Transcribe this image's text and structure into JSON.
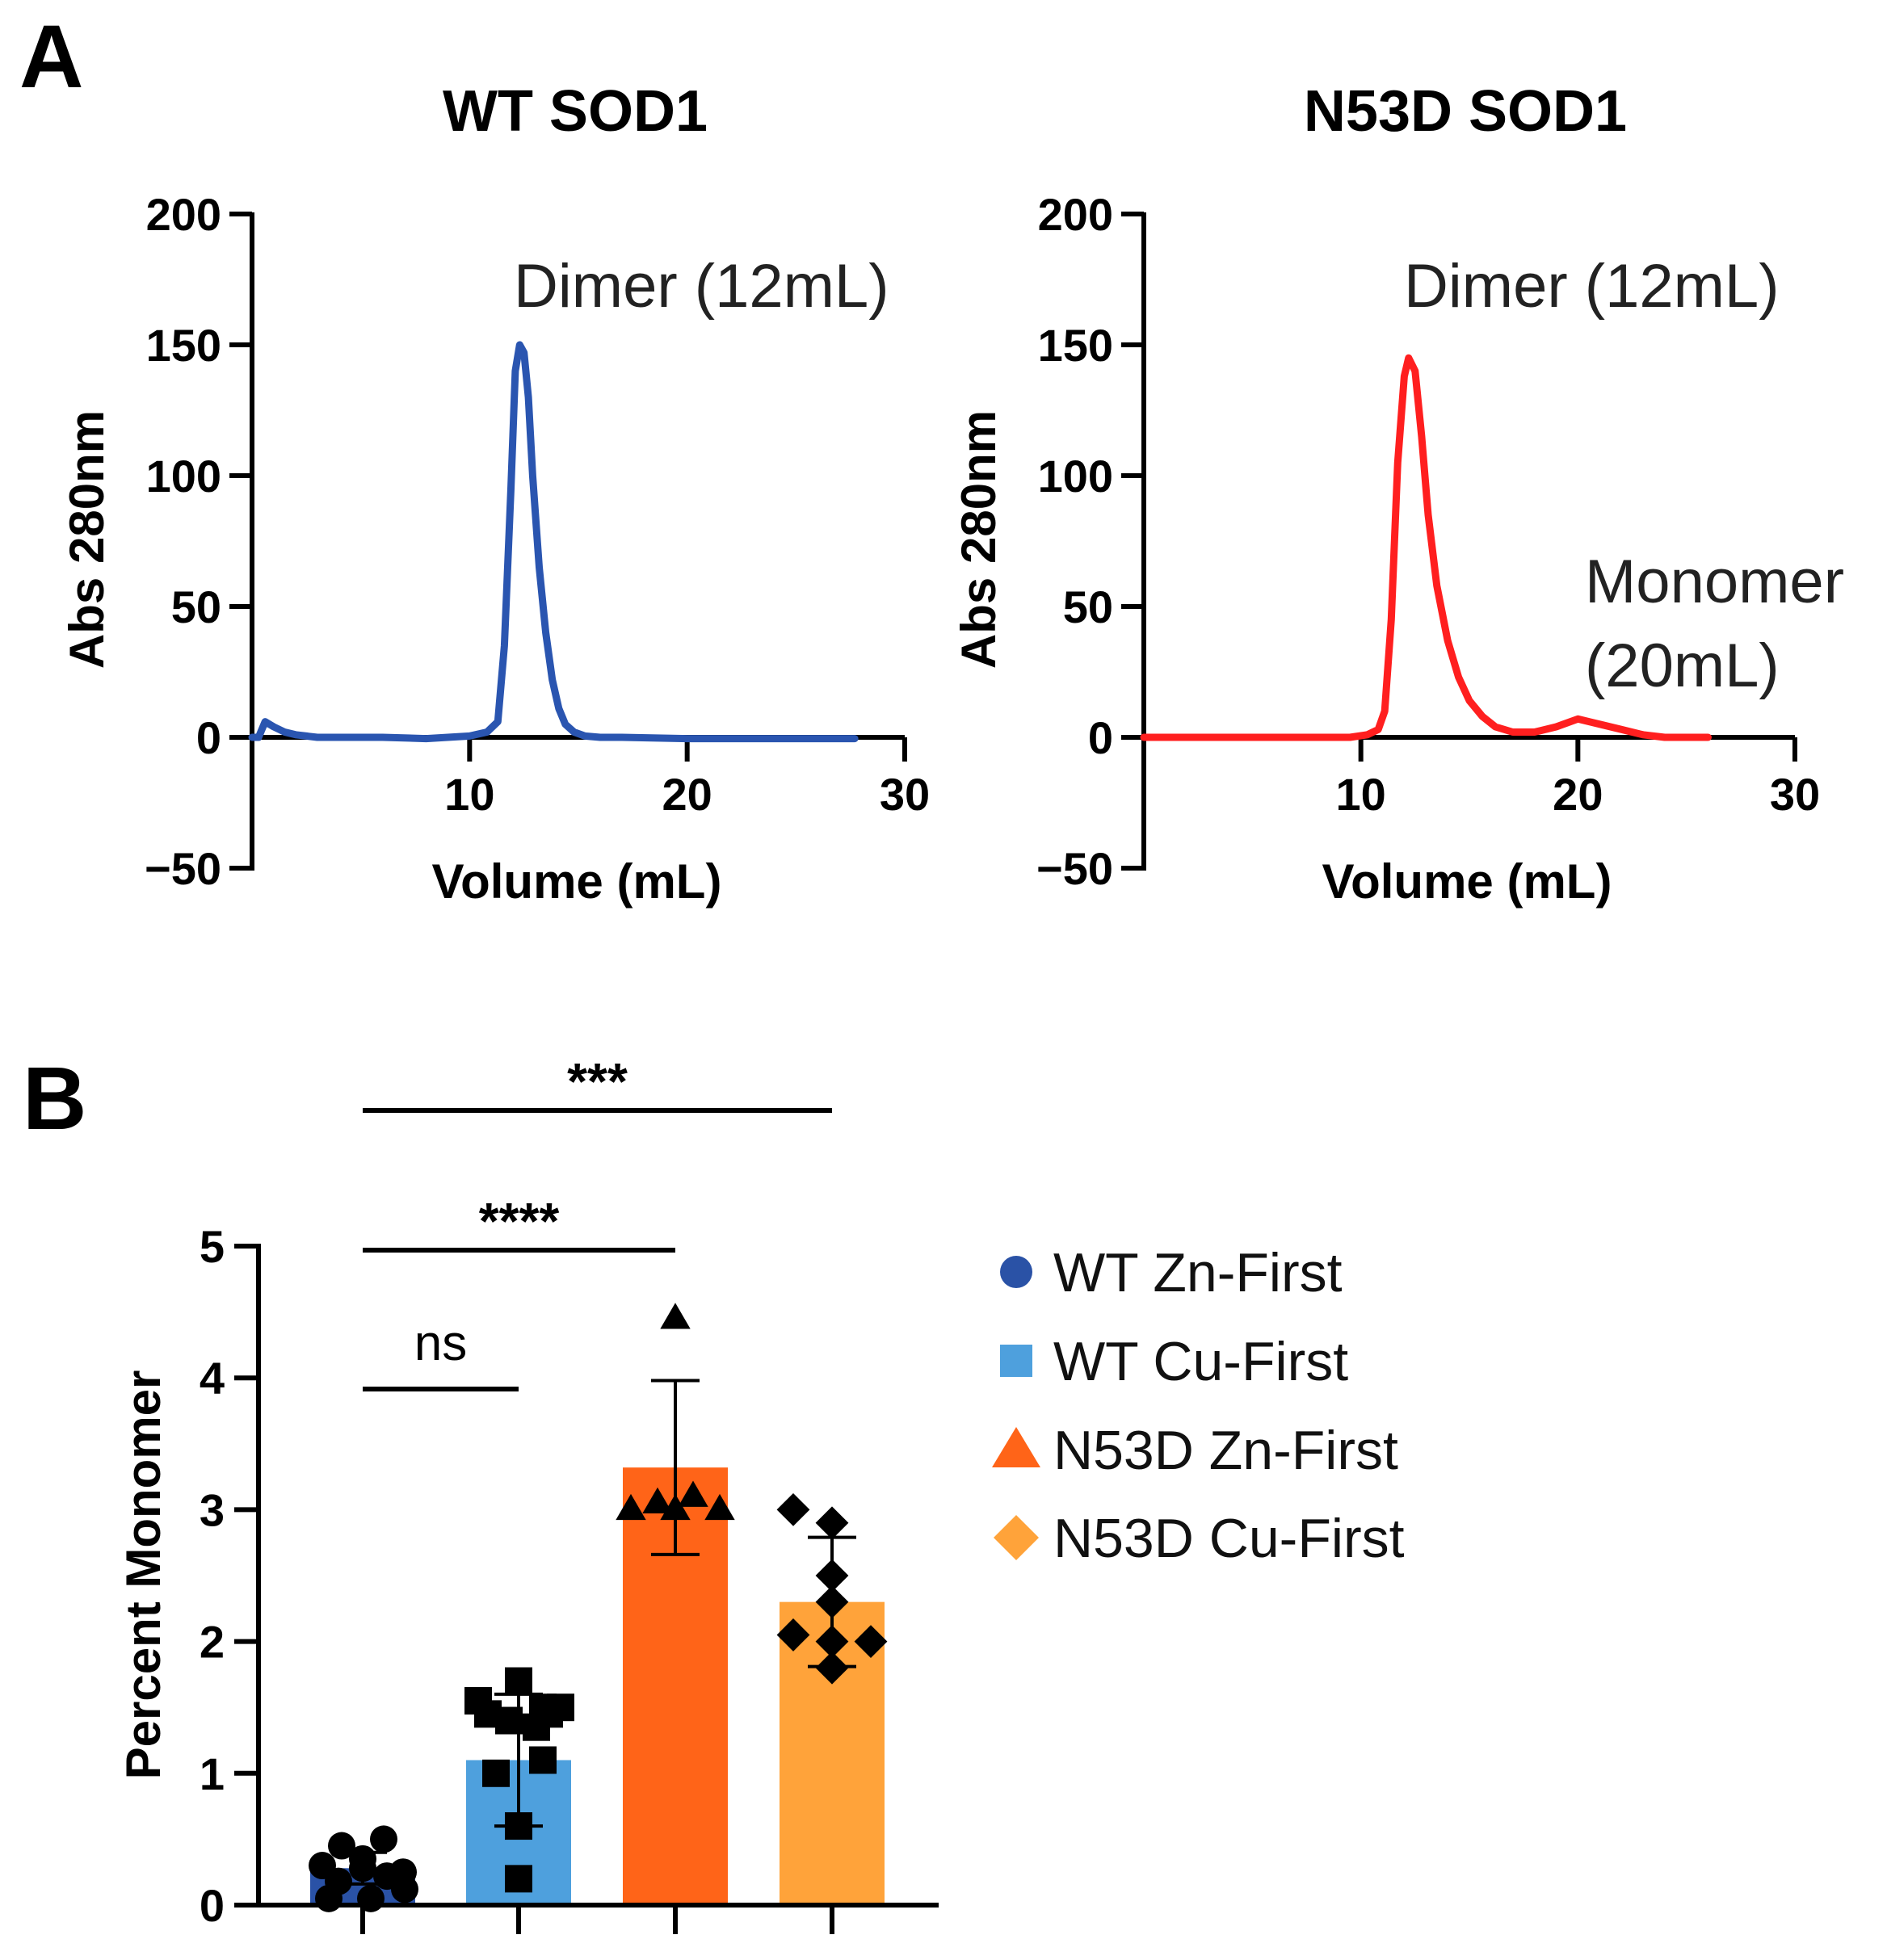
{
  "panels": {
    "a": {
      "letter": "A"
    },
    "b": {
      "letter": "B"
    }
  },
  "chart_data": [
    {
      "type": "line",
      "title": "WT SOD1",
      "xlabel": "Volume (mL)",
      "ylabel": "Abs 280nm",
      "xlim": [
        0,
        30
      ],
      "ylim": [
        -50,
        200
      ],
      "xticks": [
        10,
        20,
        30
      ],
      "yticks": [
        "200",
        "150",
        "100",
        "50",
        "0",
        "−50"
      ],
      "grid": false,
      "color": "#2a55b0",
      "annotations": [
        {
          "text": "Dimer (12mL)",
          "x": 12,
          "y": 150
        }
      ],
      "x": [
        0,
        0.3,
        0.6,
        1.0,
        1.5,
        2,
        3,
        4,
        6,
        8,
        9,
        10,
        10.8,
        11.3,
        11.6,
        11.9,
        12.1,
        12.3,
        12.5,
        12.7,
        12.9,
        13.2,
        13.5,
        13.8,
        14.1,
        14.4,
        14.8,
        15.3,
        16,
        17,
        20,
        24,
        27.7
      ],
      "y": [
        0,
        0,
        6,
        4,
        2,
        1,
        0,
        0,
        0,
        -0.5,
        0,
        0.5,
        2,
        6,
        35,
        95,
        140,
        150,
        147,
        130,
        100,
        65,
        40,
        22,
        11,
        5,
        2,
        0.5,
        0,
        0,
        -0.5,
        -0.5,
        -0.5
      ]
    },
    {
      "type": "line",
      "title": "N53D SOD1",
      "xlabel": "Volume (mL)",
      "ylabel": "Abs 280nm",
      "xlim": [
        0,
        30
      ],
      "ylim": [
        -50,
        200
      ],
      "xticks": [
        10,
        20,
        30
      ],
      "yticks": [
        "200",
        "150",
        "100",
        "50",
        "0",
        "−50"
      ],
      "grid": false,
      "color": "#ff1f1f",
      "annotations": [
        {
          "text": "Dimer (12mL)",
          "x": 12,
          "y": 145
        },
        {
          "text": "Monomer",
          "x": 20,
          "y": 7
        },
        {
          "text": "(20mL)",
          "x": 20,
          "y": 7
        }
      ],
      "x": [
        0,
        4,
        8,
        9.5,
        10.3,
        10.8,
        11.1,
        11.4,
        11.7,
        12.0,
        12.2,
        12.5,
        12.8,
        13.1,
        13.5,
        14.0,
        14.5,
        15.0,
        15.6,
        16.2,
        17.0,
        18.0,
        19.0,
        20.0,
        21.0,
        22.0,
        23.0,
        24.0,
        26.0
      ],
      "y": [
        0,
        0,
        0,
        0,
        1,
        3,
        10,
        45,
        105,
        138,
        145,
        140,
        115,
        85,
        58,
        37,
        23,
        14,
        8,
        4,
        2,
        2,
        4,
        7,
        5,
        3,
        1,
        0,
        0
      ]
    },
    {
      "type": "bar",
      "xlabel": "",
      "ylabel": "Percent Monomer",
      "ylim": [
        0,
        5
      ],
      "yticks": [
        "0",
        "1",
        "2",
        "3",
        "4",
        "5"
      ],
      "grid": false,
      "legend_position": "right",
      "categories": [
        "WT Zn-First",
        "WT Cu-First",
        "N53D Zn-First",
        "N53D Cu-First"
      ],
      "series": [
        {
          "name": "WT Zn-First",
          "value": 0.28,
          "sd": 0.12,
          "color": "#2a52a6",
          "marker": "circle",
          "points": [
            0.5,
            0.45,
            0.35,
            0.3,
            0.25,
            0.28,
            0.22,
            0.18,
            0.12,
            0.05,
            0.05
          ]
        },
        {
          "name": "WT Cu-First",
          "value": 1.1,
          "sd": 0.5,
          "color": "#4ea0dd",
          "marker": "square",
          "points": [
            1.7,
            1.55,
            1.5,
            1.45,
            1.5,
            1.45,
            1.4,
            1.35,
            1.1,
            1.0,
            0.6,
            0.2
          ]
        },
        {
          "name": "N53D Zn-First",
          "value": 3.32,
          "sd": 0.66,
          "color": "#ff6418",
          "marker": "triangle",
          "points": [
            4.45,
            3.0,
            3.05,
            3.0,
            3.1,
            3.0
          ]
        },
        {
          "name": "N53D Cu-First",
          "value": 2.3,
          "sd": 0.49,
          "color": "#ffa33a",
          "marker": "diamond",
          "points": [
            3.0,
            2.9,
            2.5,
            2.3,
            2.05,
            2.0,
            1.8,
            2.0
          ]
        }
      ],
      "significance": [
        {
          "label": "***",
          "from": 0,
          "to": 3
        },
        {
          "label": "****",
          "from": 0,
          "to": 2
        },
        {
          "label": "ns",
          "from": 0,
          "to": 1
        }
      ]
    }
  ]
}
